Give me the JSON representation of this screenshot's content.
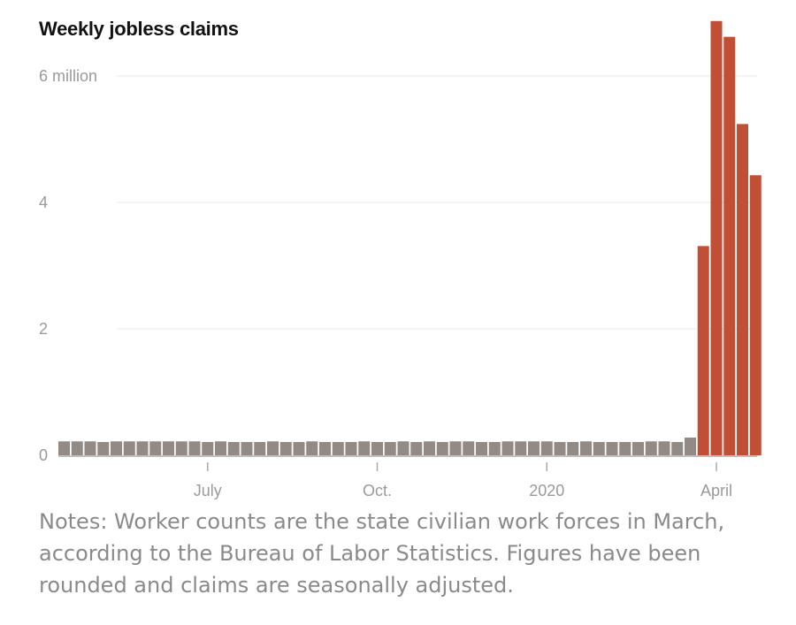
{
  "chart_data": {
    "type": "bar",
    "title": "Weekly jobless claims",
    "unit": "million",
    "ylim": [
      0,
      6.9
    ],
    "y_ticks": [
      {
        "value": 0,
        "label": "0"
      },
      {
        "value": 2,
        "label": "2"
      },
      {
        "value": 4,
        "label": "4"
      },
      {
        "value": 6,
        "label": "6 million"
      }
    ],
    "x_ticks": [
      {
        "index": 11,
        "label": "July"
      },
      {
        "index": 24,
        "label": "Oct."
      },
      {
        "index": 37,
        "label": "2020"
      },
      {
        "index": 50,
        "label": "April"
      }
    ],
    "grid": true,
    "legend": "none",
    "colors": {
      "normal": "#918a85",
      "highlight": "#c14f36",
      "grid": "#e8e8e8",
      "axis": "#aaaaaa"
    },
    "values": [
      0.22,
      0.22,
      0.22,
      0.21,
      0.22,
      0.22,
      0.22,
      0.22,
      0.22,
      0.22,
      0.22,
      0.21,
      0.22,
      0.21,
      0.21,
      0.21,
      0.22,
      0.21,
      0.21,
      0.22,
      0.21,
      0.21,
      0.21,
      0.22,
      0.21,
      0.21,
      0.22,
      0.21,
      0.22,
      0.21,
      0.22,
      0.22,
      0.21,
      0.21,
      0.22,
      0.22,
      0.22,
      0.22,
      0.21,
      0.21,
      0.22,
      0.21,
      0.21,
      0.21,
      0.21,
      0.22,
      0.22,
      0.21,
      0.28,
      3.31,
      6.87,
      6.62,
      5.24,
      4.43
    ],
    "highlight_from": 49
  },
  "notes": "Notes: Worker counts are the state civilian work forces in March, according to the Bureau of Labor Statistics. Figures have been rounded and claims are seasonally adjusted."
}
